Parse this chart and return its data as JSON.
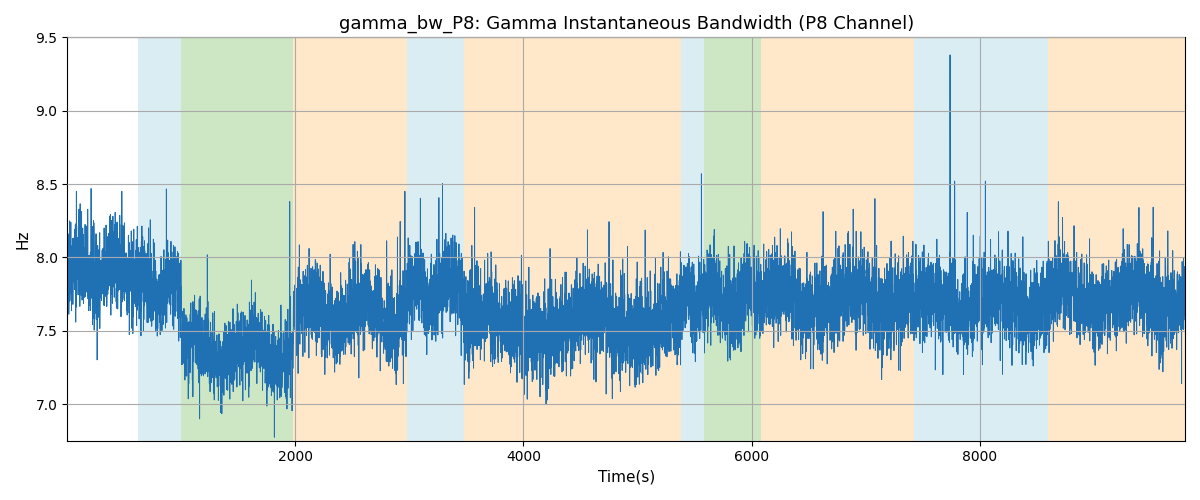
{
  "title": "gamma_bw_P8: Gamma Instantaneous Bandwidth (P8 Channel)",
  "xlabel": "Time(s)",
  "ylabel": "Hz",
  "ylim": [
    6.75,
    9.5
  ],
  "xlim": [
    0,
    9800
  ],
  "yticks": [
    7.0,
    7.5,
    8.0,
    8.5,
    9.0,
    9.5
  ],
  "xticks": [
    2000,
    4000,
    6000,
    8000
  ],
  "line_color": "#2070b4",
  "line_width": 0.7,
  "background_color": "#ffffff",
  "grid_color": "#aaaaaa",
  "seed": 42,
  "n_points": 9800,
  "base_mean": 7.78,
  "colored_bands": [
    {
      "start": 620,
      "end": 1000,
      "color": "#add8e6",
      "alpha": 0.45
    },
    {
      "start": 1000,
      "end": 1980,
      "color": "#90c87a",
      "alpha": 0.45
    },
    {
      "start": 1980,
      "end": 2980,
      "color": "#ffd59e",
      "alpha": 0.55
    },
    {
      "start": 2980,
      "end": 3480,
      "color": "#add8e6",
      "alpha": 0.45
    },
    {
      "start": 3480,
      "end": 5380,
      "color": "#ffd59e",
      "alpha": 0.55
    },
    {
      "start": 5380,
      "end": 5580,
      "color": "#add8e6",
      "alpha": 0.45
    },
    {
      "start": 5580,
      "end": 6080,
      "color": "#90c87a",
      "alpha": 0.45
    },
    {
      "start": 6080,
      "end": 7420,
      "color": "#ffd59e",
      "alpha": 0.55
    },
    {
      "start": 7420,
      "end": 8600,
      "color": "#add8e6",
      "alpha": 0.45
    },
    {
      "start": 8600,
      "end": 9800,
      "color": "#ffd59e",
      "alpha": 0.55
    }
  ],
  "segments": [
    {
      "start": 0,
      "end": 620,
      "mean": 7.9,
      "std": 0.16,
      "trend": 0.0
    },
    {
      "start": 620,
      "end": 1000,
      "mean": 7.8,
      "std": 0.14,
      "trend": -0.0002
    },
    {
      "start": 1000,
      "end": 1980,
      "mean": 7.35,
      "std": 0.13,
      "trend": 0.0
    },
    {
      "start": 1980,
      "end": 2980,
      "mean": 7.62,
      "std": 0.15,
      "trend": 0.0
    },
    {
      "start": 2980,
      "end": 3480,
      "mean": 7.78,
      "std": 0.14,
      "trend": 0.0
    },
    {
      "start": 3480,
      "end": 5380,
      "mean": 7.55,
      "std": 0.16,
      "trend": 0.0
    },
    {
      "start": 5380,
      "end": 5580,
      "mean": 7.72,
      "std": 0.14,
      "trend": 0.0
    },
    {
      "start": 5580,
      "end": 6080,
      "mean": 7.72,
      "std": 0.14,
      "trend": 0.0
    },
    {
      "start": 6080,
      "end": 7420,
      "mean": 7.72,
      "std": 0.15,
      "trend": 0.0
    },
    {
      "start": 7420,
      "end": 8600,
      "mean": 7.68,
      "std": 0.14,
      "trend": 0.0
    },
    {
      "start": 8600,
      "end": 9800,
      "mean": 7.72,
      "std": 0.15,
      "trend": 0.0
    }
  ],
  "notable_spikes": [
    {
      "t": 80,
      "v": 8.45
    },
    {
      "t": 230,
      "v": 8.25
    },
    {
      "t": 340,
      "v": 8.22
    },
    {
      "t": 400,
      "v": 8.28
    },
    {
      "t": 800,
      "v": 7.88
    },
    {
      "t": 1950,
      "v": 8.38
    },
    {
      "t": 2960,
      "v": 8.45
    },
    {
      "t": 5560,
      "v": 8.57
    },
    {
      "t": 5610,
      "v": 8.05
    },
    {
      "t": 7740,
      "v": 9.38
    },
    {
      "t": 7780,
      "v": 8.52
    },
    {
      "t": 8050,
      "v": 8.52
    }
  ]
}
